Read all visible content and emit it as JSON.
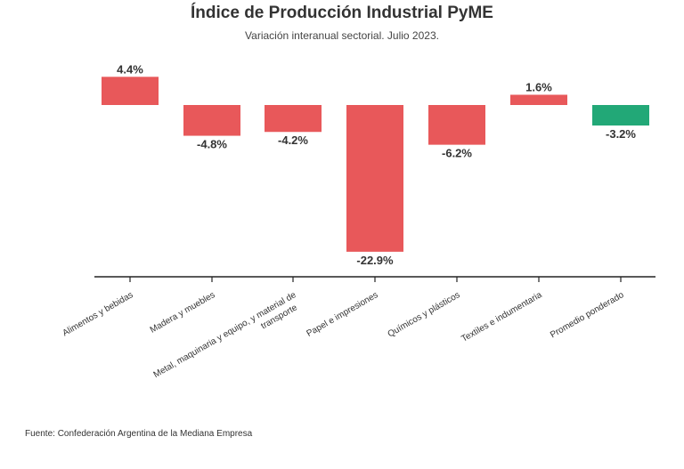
{
  "chart_data": {
    "type": "bar",
    "title": "Índice de Producción Industrial PyME",
    "subtitle": "Variación interanual sectorial. Julio 2023.",
    "categories": [
      [
        "Alimentos y bebidas"
      ],
      [
        "Madera y muebles"
      ],
      [
        "Metal, maquinaria y equipo, y material de",
        "transporte"
      ],
      [
        "Papel e impresiones"
      ],
      [
        "Químicos y plásticos"
      ],
      [
        "Textiles e indumentaria"
      ],
      [
        "Promedio ponderado"
      ]
    ],
    "values": [
      4.4,
      -4.8,
      -4.2,
      -22.9,
      -6.2,
      1.6,
      -3.2
    ],
    "value_labels": [
      "4.4%",
      "-4.8%",
      "-4.2%",
      "-22.9%",
      "-6.2%",
      "1.6%",
      "-3.2%"
    ],
    "colors": [
      "#e8585a",
      "#e8585a",
      "#e8585a",
      "#e8585a",
      "#e8585a",
      "#e8585a",
      "#22a877"
    ],
    "xlabel": "",
    "ylabel": "",
    "grid": false,
    "source": "Fuente: Confederación Argentina de la Mediana Empresa"
  }
}
